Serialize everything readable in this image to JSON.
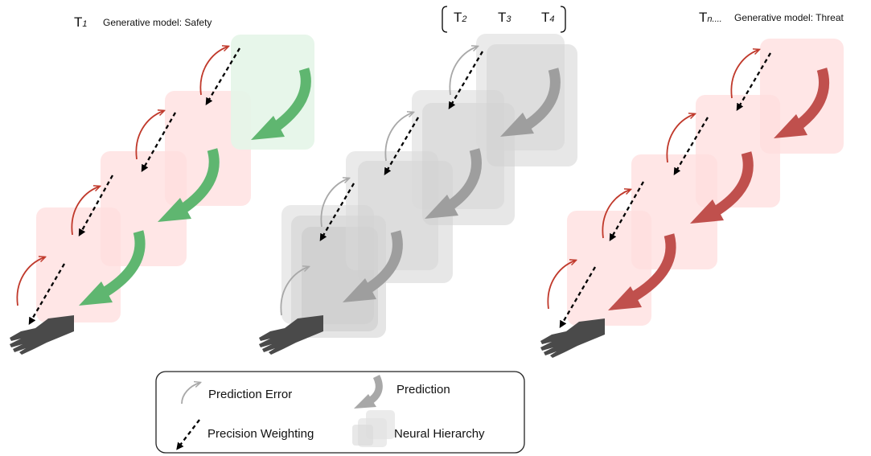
{
  "panels": {
    "safety": {
      "t_main": "T",
      "t_sub": "1",
      "title": "Generative model: Safety",
      "box_color": "#ffdede",
      "top_box_color": "#e4f5e8",
      "prediction_color": "#5fb670",
      "error_color": "#c0392b"
    },
    "transition": {
      "items": [
        {
          "main": "T",
          "sub": "2"
        },
        {
          "main": "T",
          "sub": "3"
        },
        {
          "main": "T",
          "sub": "4"
        }
      ],
      "box_color": "#cfcfcf",
      "prediction_color": "#9e9e9e",
      "error_color": "#a8a8a8"
    },
    "threat": {
      "t_main": "T",
      "t_sub": "n....",
      "title": "Generative model: Threat",
      "box_color": "#ffdede",
      "prediction_color": "#c0504d",
      "error_color": "#c0392b"
    }
  },
  "legend": {
    "prediction_error": "Prediction Error",
    "prediction": "Prediction",
    "precision_weighting": "Precision Weighting",
    "neural_hierarchy": "Neural Hierarchy"
  }
}
